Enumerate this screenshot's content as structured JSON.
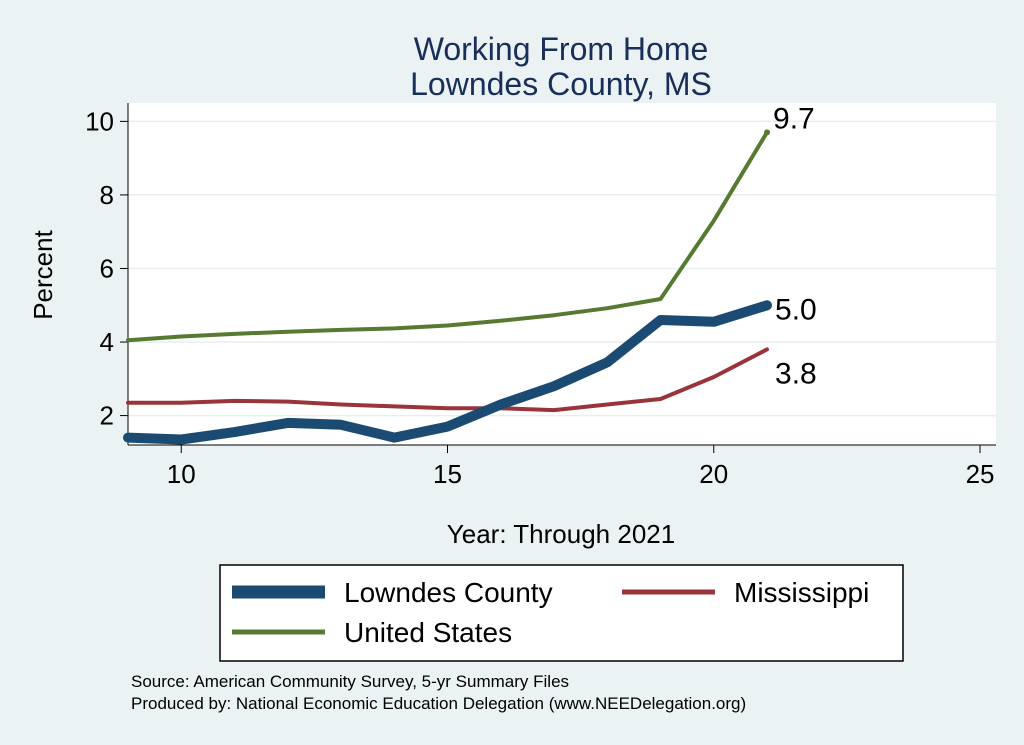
{
  "chart_data": {
    "type": "line",
    "title": [
      "Working From Home",
      "Lowndes County, MS"
    ],
    "xlabel": "Year: Through 2021",
    "ylabel": "Percent",
    "xlim": [
      9,
      25.3
    ],
    "ylim": [
      1.2,
      10.5
    ],
    "xticks": [
      10,
      15,
      20,
      25
    ],
    "yticks": [
      2,
      4,
      6,
      8,
      10
    ],
    "grid": true,
    "series": [
      {
        "name": "Lowndes County",
        "color": "#1b4a73",
        "x": [
          9,
          10,
          11,
          12,
          13,
          14,
          15,
          16,
          17,
          18,
          19,
          20,
          21
        ],
        "y": [
          1.4,
          1.35,
          1.55,
          1.8,
          1.75,
          1.4,
          1.7,
          2.3,
          2.8,
          3.45,
          4.6,
          4.55,
          5.0
        ],
        "end_label": "5.0"
      },
      {
        "name": "Mississippi",
        "color": "#98353b",
        "x": [
          9,
          10,
          11,
          12,
          13,
          14,
          15,
          16,
          17,
          18,
          19,
          20,
          21
        ],
        "y": [
          2.35,
          2.35,
          2.4,
          2.38,
          2.3,
          2.25,
          2.2,
          2.2,
          2.15,
          2.3,
          2.45,
          3.05,
          3.8
        ],
        "end_label": "3.8"
      },
      {
        "name": "United States",
        "color": "#557a30",
        "x": [
          9,
          10,
          11,
          12,
          13,
          14,
          15,
          16,
          17,
          18,
          19,
          20,
          21
        ],
        "y": [
          4.05,
          4.15,
          4.22,
          4.28,
          4.33,
          4.37,
          4.45,
          4.58,
          4.73,
          4.92,
          5.17,
          7.3,
          9.7
        ],
        "end_label": "9.7"
      }
    ],
    "legend": {
      "entries": [
        "Lowndes County",
        "Mississippi",
        "United States"
      ],
      "placement": "bottom"
    },
    "notes": [
      "Source: American Community Survey, 5-yr Summary Files",
      "Produced by: National Economic Education Delegation (www.NEEDelegation.org)"
    ]
  }
}
